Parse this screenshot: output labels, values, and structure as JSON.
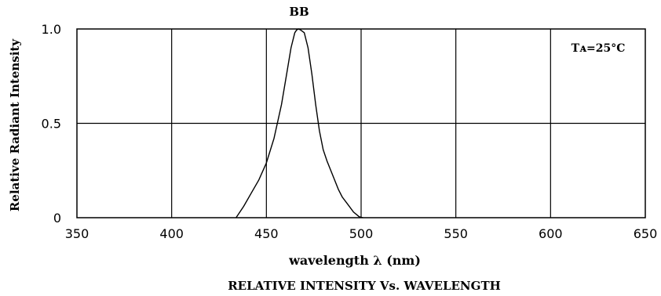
{
  "chart_data": {
    "type": "line",
    "title": "BB",
    "caption": "RELATIVE INTENSITY Vs. WAVELENGTH",
    "xlabel": "wavelength λ (nm)",
    "ylabel": "Relative Radiant Intensity",
    "annotation": "Tᴀ=25°C",
    "xlim": [
      350,
      650
    ],
    "ylim": [
      0,
      1.0
    ],
    "x_ticks": [
      350,
      400,
      450,
      500,
      550,
      600,
      650
    ],
    "x_tick_labels": [
      "350",
      "400",
      "450",
      "500",
      "550",
      "600",
      "650"
    ],
    "y_ticks": [
      0,
      0.5,
      1.0
    ],
    "y_tick_labels": [
      "0",
      "0.5",
      "1.0"
    ],
    "grid": true,
    "series": [
      {
        "x": [
          434,
          438,
          442,
          446,
          450,
          454,
          458,
          461,
          463,
          465,
          466,
          467,
          468,
          470,
          472,
          474,
          476,
          478,
          480,
          482,
          484,
          486,
          488,
          490,
          493,
          496,
          499,
          501
        ],
        "y": [
          0.0,
          0.06,
          0.13,
          0.2,
          0.29,
          0.42,
          0.6,
          0.78,
          0.9,
          0.98,
          0.995,
          1.0,
          0.995,
          0.98,
          0.9,
          0.76,
          0.6,
          0.46,
          0.36,
          0.3,
          0.25,
          0.2,
          0.15,
          0.11,
          0.07,
          0.03,
          0.005,
          0.0
        ]
      }
    ]
  }
}
